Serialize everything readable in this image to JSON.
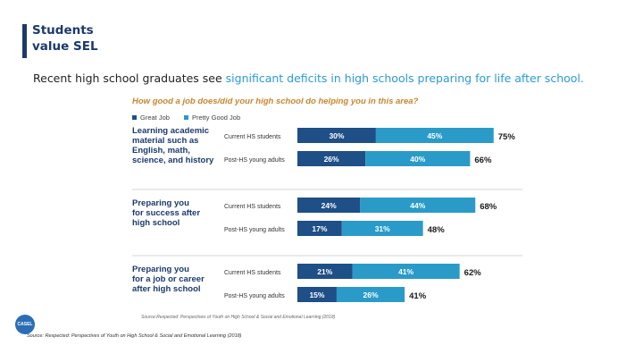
{
  "slide": {
    "title_line1": "Students",
    "title_line2": "value SEL",
    "accent_color": "#1b3a6b",
    "subtitle_prefix": "Recent high school graduates see ",
    "subtitle_highlight": "significant deficits in high schools preparing for life after school.",
    "chart_source": "Source:Respected: Perspectives of Youth on High School & Social and Emotional Learning (2018)",
    "footnote": "Source: Respected: Perspectives of Youth on High School & Social and Emotional Learning (2018)",
    "logo_text": "CASEL"
  },
  "chart_data": {
    "type": "bar",
    "orientation": "horizontal",
    "stacked": true,
    "title": "How good a job does/did your high school do helping you in this area?",
    "legend": [
      "Great Job",
      "Pretty Good Job"
    ],
    "colors": {
      "great": "#1e4f87",
      "pretty_good": "#2a9bc8",
      "text_dark": "#1b3a6b"
    },
    "xlim": [
      0,
      100
    ],
    "groups": [
      {
        "label": [
          "Learning academic",
          "material such as",
          "English, math,",
          "science, and history"
        ],
        "rows": [
          {
            "name": "Current HS students",
            "great": 30,
            "pretty_good": 45,
            "total": 75
          },
          {
            "name": "Post-HS young adults",
            "great": 26,
            "pretty_good": 40,
            "total": 66
          }
        ]
      },
      {
        "label": [
          "Preparing you",
          "for success after",
          "high school"
        ],
        "rows": [
          {
            "name": "Current HS students",
            "great": 24,
            "pretty_good": 44,
            "total": 68
          },
          {
            "name": "Post-HS young adults",
            "great": 17,
            "pretty_good": 31,
            "total": 48
          }
        ]
      },
      {
        "label": [
          "Preparing you",
          "for a job or career",
          "after high school"
        ],
        "rows": [
          {
            "name": "Current HS students",
            "great": 21,
            "pretty_good": 41,
            "total": 62
          },
          {
            "name": "Post-HS young adults",
            "great": 15,
            "pretty_good": 26,
            "total": 41
          }
        ]
      }
    ]
  }
}
